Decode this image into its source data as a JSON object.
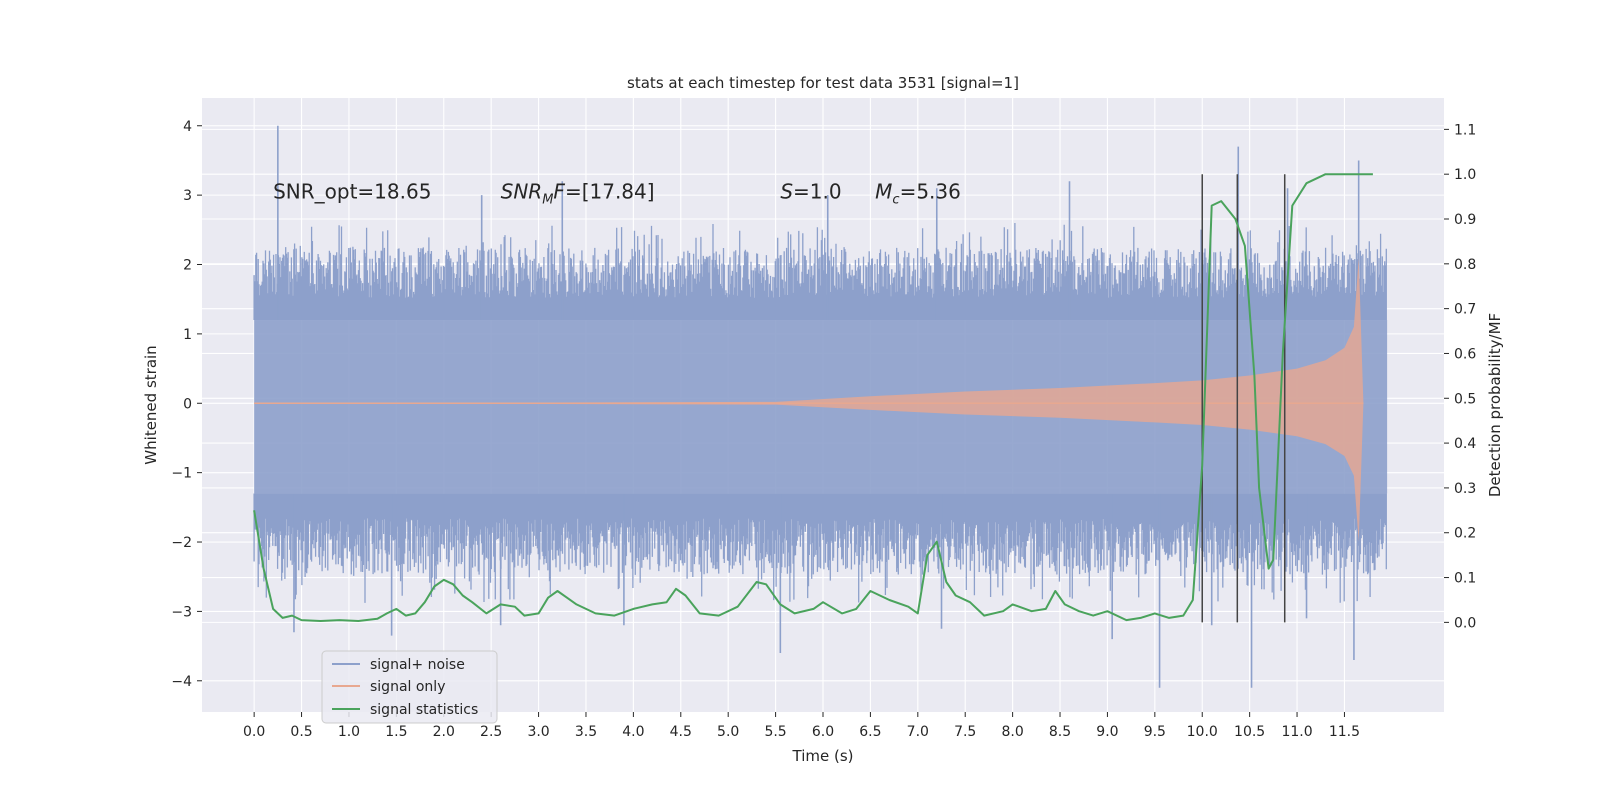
{
  "chart_data": {
    "type": "line",
    "title": "stats at each timestep for test data 3531 [signal=1]",
    "xlabel": "Time (s)",
    "ylabel": "Whitened strain",
    "y2label": "Detection probability/MF",
    "xlim": [
      -0.55,
      12.55
    ],
    "ylim": [
      -4.45,
      4.4
    ],
    "y2lim": [
      -0.2,
      1.17
    ],
    "x_ticks": [
      "0.0",
      "0.5",
      "1.0",
      "1.5",
      "2.0",
      "2.5",
      "3.0",
      "3.5",
      "4.0",
      "4.5",
      "5.0",
      "5.5",
      "6.0",
      "6.5",
      "7.0",
      "7.5",
      "8.0",
      "8.5",
      "9.0",
      "9.5",
      "10.0",
      "10.5",
      "11.0",
      "11.5"
    ],
    "y_ticks": [
      "4",
      "3",
      "2",
      "1",
      "0",
      "−1",
      "−2",
      "−3",
      "−4"
    ],
    "y2_ticks": [
      "1.1",
      "1.0",
      "0.9",
      "0.8",
      "0.7",
      "0.6",
      "0.5",
      "0.4",
      "0.3",
      "0.2",
      "0.1",
      "0.0"
    ],
    "grid": true,
    "legend_position": "lower-left",
    "colors": {
      "noise": "#8da0cb",
      "signal": "#e8a890",
      "stats": "#4aa35c",
      "background": "#eaeaf2",
      "grid": "#ffffff",
      "vline": "#444444"
    },
    "series": [
      {
        "name": "signal+ noise",
        "kind": "noise-band",
        "t_range": [
          0.0,
          11.95
        ],
        "band_top": 1.2,
        "band_bottom": -1.3,
        "typical_upper": 2.0,
        "typical_lower": -2.2,
        "peaks": [
          {
            "t": 0.25,
            "v": 4.0
          },
          {
            "t": 10.38,
            "v": 3.7
          },
          {
            "t": 11.65,
            "v": 3.5
          },
          {
            "t": 2.4,
            "v": 3.0
          },
          {
            "t": 3.25,
            "v": 3.2
          },
          {
            "t": 6.05,
            "v": 3.0
          },
          {
            "t": 7.2,
            "v": 3.1
          },
          {
            "t": 8.6,
            "v": 3.2
          },
          {
            "t": 10.9,
            "v": 3.1
          },
          {
            "t": 9.55,
            "v": -4.1
          },
          {
            "t": 10.52,
            "v": -4.1
          },
          {
            "t": 11.6,
            "v": -3.7
          },
          {
            "t": 5.55,
            "v": -3.6
          },
          {
            "t": 0.42,
            "v": -3.3
          },
          {
            "t": 1.45,
            "v": -3.35
          },
          {
            "t": 9.05,
            "v": -3.4
          },
          {
            "t": 2.6,
            "v": -3.2
          },
          {
            "t": 3.9,
            "v": -3.2
          },
          {
            "t": 7.25,
            "v": -3.25
          },
          {
            "t": 10.1,
            "v": -3.2
          },
          {
            "t": 11.1,
            "v": -3.1
          }
        ]
      },
      {
        "name": "signal only",
        "kind": "chirp-envelope",
        "points": [
          {
            "t": 0.0,
            "amp": 0.0
          },
          {
            "t": 5.5,
            "amp": 0.02
          },
          {
            "t": 6.5,
            "amp": 0.1
          },
          {
            "t": 7.5,
            "amp": 0.17
          },
          {
            "t": 8.5,
            "amp": 0.22
          },
          {
            "t": 9.5,
            "amp": 0.29
          },
          {
            "t": 10.0,
            "amp": 0.33
          },
          {
            "t": 10.5,
            "amp": 0.4
          },
          {
            "t": 11.0,
            "amp": 0.5
          },
          {
            "t": 11.3,
            "amp": 0.62
          },
          {
            "t": 11.5,
            "amp": 0.8
          },
          {
            "t": 11.6,
            "amp": 1.1
          },
          {
            "t": 11.65,
            "amp": 2.1
          },
          {
            "t": 11.7,
            "amp": 0.0
          }
        ]
      },
      {
        "name": "signal statistics",
        "kind": "line",
        "axis": "right",
        "x": [
          0.0,
          0.1,
          0.2,
          0.3,
          0.4,
          0.5,
          0.7,
          0.9,
          1.1,
          1.3,
          1.4,
          1.5,
          1.6,
          1.7,
          1.8,
          1.9,
          2.0,
          2.1,
          2.2,
          2.3,
          2.45,
          2.6,
          2.75,
          2.85,
          3.0,
          3.1,
          3.2,
          3.3,
          3.4,
          3.6,
          3.8,
          4.0,
          4.2,
          4.35,
          4.45,
          4.55,
          4.7,
          4.9,
          5.1,
          5.3,
          5.4,
          5.55,
          5.7,
          5.9,
          6.0,
          6.2,
          6.35,
          6.5,
          6.7,
          6.9,
          7.0,
          7.1,
          7.2,
          7.3,
          7.4,
          7.55,
          7.7,
          7.9,
          8.0,
          8.2,
          8.35,
          8.45,
          8.55,
          8.7,
          8.85,
          9.0,
          9.2,
          9.35,
          9.5,
          9.65,
          9.8,
          9.9,
          10.0,
          10.1,
          10.2,
          10.35,
          10.45,
          10.55,
          10.6,
          10.7,
          10.75,
          10.85,
          10.95,
          11.1,
          11.3,
          11.5,
          11.7,
          11.8
        ],
        "y": [
          0.25,
          0.12,
          0.03,
          0.01,
          0.015,
          0.005,
          0.003,
          0.005,
          0.003,
          0.008,
          0.02,
          0.03,
          0.015,
          0.02,
          0.045,
          0.08,
          0.095,
          0.085,
          0.06,
          0.045,
          0.02,
          0.04,
          0.035,
          0.015,
          0.02,
          0.055,
          0.07,
          0.055,
          0.04,
          0.02,
          0.015,
          0.03,
          0.04,
          0.045,
          0.075,
          0.06,
          0.02,
          0.015,
          0.035,
          0.09,
          0.085,
          0.04,
          0.02,
          0.03,
          0.045,
          0.02,
          0.03,
          0.07,
          0.05,
          0.035,
          0.02,
          0.15,
          0.18,
          0.09,
          0.06,
          0.045,
          0.015,
          0.025,
          0.04,
          0.025,
          0.03,
          0.07,
          0.04,
          0.025,
          0.015,
          0.025,
          0.005,
          0.01,
          0.02,
          0.01,
          0.015,
          0.05,
          0.35,
          0.93,
          0.94,
          0.9,
          0.84,
          0.55,
          0.3,
          0.12,
          0.14,
          0.6,
          0.93,
          0.98,
          1.0,
          1.0,
          1.0,
          1.0
        ]
      }
    ],
    "vlines": [
      10.0,
      10.37,
      10.87
    ],
    "vline_range_y2": [
      0.0,
      1.0
    ],
    "annotations": [
      {
        "text": "SNR_opt=18.65",
        "t": 0.2
      },
      {
        "text": "=[17.84]",
        "t": 2.6,
        "italic_prefix": "SNR",
        "sub": "M",
        "italic_suffix": "F"
      },
      {
        "text": "=1.0",
        "t": 5.55,
        "italic_prefix": "S"
      },
      {
        "text": "=5.36",
        "t": 6.55,
        "italic_prefix": "M",
        "sub": "c"
      }
    ],
    "legend": [
      {
        "label": "signal+ noise",
        "color": "#8da0cb"
      },
      {
        "label": "signal only",
        "color": "#e8a890"
      },
      {
        "label": "signal statistics",
        "color": "#4aa35c"
      }
    ]
  }
}
